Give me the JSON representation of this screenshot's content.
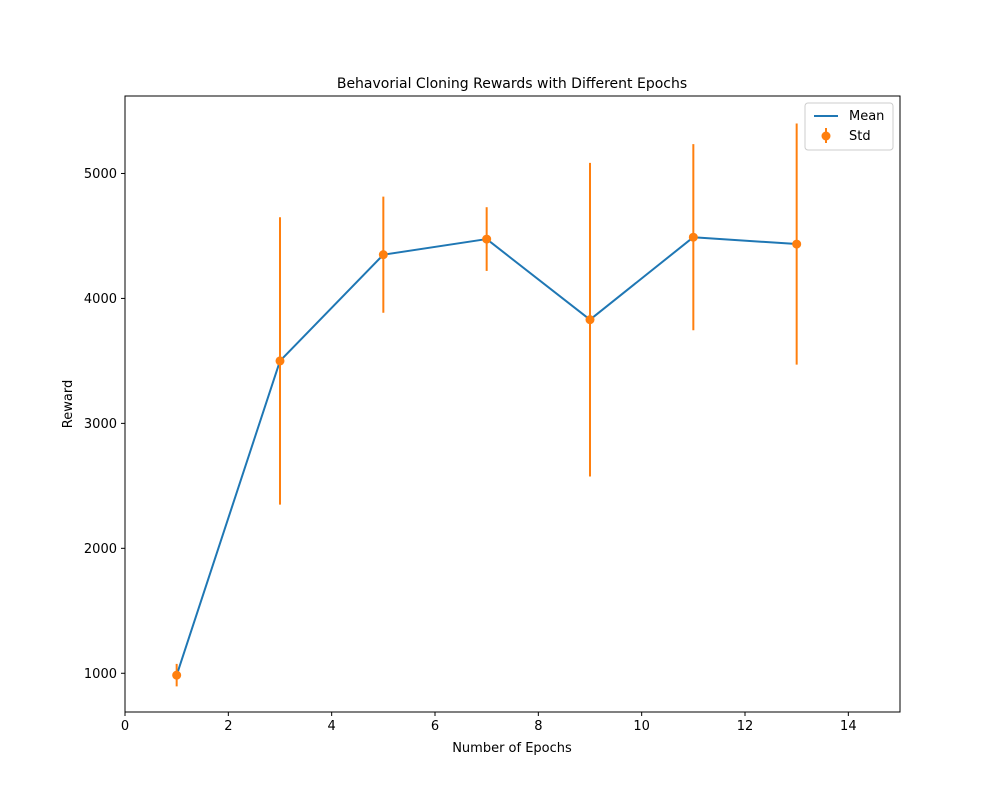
{
  "colors": {
    "mean_line": "#1f77b4",
    "std_marker": "#ff7f0e",
    "axes": "#000000",
    "background": "#ffffff"
  },
  "chart_data": {
    "type": "line",
    "title": "Behavorial Cloning Rewards with Different Epochs",
    "xlabel": "Number of Epochs",
    "ylabel": "Reward",
    "xlim": [
      0,
      15
    ],
    "ylim": [
      690,
      5620
    ],
    "xticks": [
      0,
      2,
      4,
      6,
      8,
      10,
      12,
      14
    ],
    "yticks": [
      1000,
      2000,
      3000,
      4000,
      5000
    ],
    "grid": false,
    "legend_position": "top-right",
    "x": [
      1,
      3,
      5,
      7,
      9,
      11,
      13
    ],
    "series": [
      {
        "name": "Mean",
        "kind": "line",
        "values": [
          985,
          3500,
          4350,
          4475,
          3830,
          4490,
          4435
        ]
      },
      {
        "name": "Std",
        "kind": "errorbar",
        "values": [
          985,
          3500,
          4350,
          4475,
          3830,
          4490,
          4435
        ],
        "errors": [
          90,
          1150,
          465,
          255,
          1255,
          745,
          965
        ]
      }
    ]
  }
}
